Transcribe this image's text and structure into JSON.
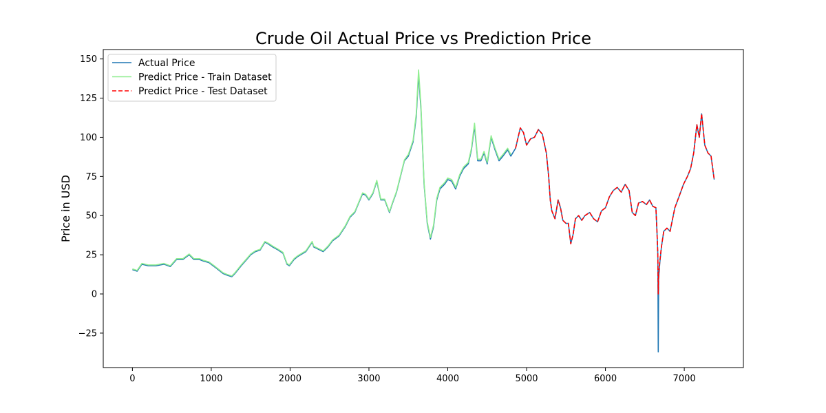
{
  "chart_data": {
    "type": "line",
    "title": "Crude Oil Actual Price vs Prediction Price",
    "xlabel": "",
    "ylabel": "Price in USD",
    "xlim": [
      -370,
      7750
    ],
    "ylim": [
      -47,
      156
    ],
    "xticks": [
      0,
      1000,
      2000,
      3000,
      4000,
      5000,
      6000,
      7000
    ],
    "yticks": [
      -25,
      0,
      25,
      50,
      75,
      100,
      125,
      150
    ],
    "grid": false,
    "legend_position": "upper left",
    "series": [
      {
        "name": "Actual Price",
        "color": "#1f77b4",
        "style": "solid",
        "points": [
          [
            0,
            15.5
          ],
          [
            60,
            14.5
          ],
          [
            120,
            19
          ],
          [
            200,
            18
          ],
          [
            300,
            18
          ],
          [
            400,
            19
          ],
          [
            480,
            17.5
          ],
          [
            560,
            22
          ],
          [
            640,
            22
          ],
          [
            720,
            25
          ],
          [
            780,
            22
          ],
          [
            850,
            22
          ],
          [
            900,
            21
          ],
          [
            970,
            20
          ],
          [
            1050,
            17
          ],
          [
            1100,
            15
          ],
          [
            1150,
            13
          ],
          [
            1200,
            12
          ],
          [
            1260,
            11
          ],
          [
            1300,
            13
          ],
          [
            1380,
            18
          ],
          [
            1450,
            22
          ],
          [
            1500,
            25
          ],
          [
            1560,
            27
          ],
          [
            1620,
            28
          ],
          [
            1680,
            33
          ],
          [
            1720,
            32
          ],
          [
            1780,
            30
          ],
          [
            1850,
            28
          ],
          [
            1910,
            26
          ],
          [
            1960,
            19
          ],
          [
            1990,
            18
          ],
          [
            2050,
            22
          ],
          [
            2100,
            24
          ],
          [
            2200,
            27
          ],
          [
            2280,
            33
          ],
          [
            2300,
            30
          ],
          [
            2380,
            28
          ],
          [
            2420,
            27
          ],
          [
            2480,
            30
          ],
          [
            2540,
            34
          ],
          [
            2620,
            37
          ],
          [
            2700,
            43
          ],
          [
            2760,
            49
          ],
          [
            2820,
            52
          ],
          [
            2870,
            58
          ],
          [
            2920,
            64
          ],
          [
            2960,
            63
          ],
          [
            3000,
            60
          ],
          [
            3050,
            64
          ],
          [
            3100,
            72
          ],
          [
            3150,
            60
          ],
          [
            3200,
            60
          ],
          [
            3260,
            52
          ],
          [
            3300,
            58
          ],
          [
            3350,
            65
          ],
          [
            3400,
            75
          ],
          [
            3450,
            85
          ],
          [
            3500,
            88
          ],
          [
            3560,
            97
          ],
          [
            3600,
            113
          ],
          [
            3630,
            140
          ],
          [
            3660,
            118
          ],
          [
            3700,
            70
          ],
          [
            3740,
            45
          ],
          [
            3780,
            35
          ],
          [
            3820,
            43
          ],
          [
            3860,
            60
          ],
          [
            3900,
            67
          ],
          [
            3960,
            70
          ],
          [
            4000,
            73
          ],
          [
            4050,
            72
          ],
          [
            4100,
            67
          ],
          [
            4150,
            75
          ],
          [
            4200,
            80
          ],
          [
            4260,
            83
          ],
          [
            4300,
            92
          ],
          [
            4340,
            107
          ],
          [
            4380,
            85
          ],
          [
            4420,
            85
          ],
          [
            4460,
            90
          ],
          [
            4500,
            83
          ],
          [
            4550,
            100
          ],
          [
            4600,
            92
          ],
          [
            4650,
            85
          ],
          [
            4700,
            88
          ],
          [
            4760,
            92
          ],
          [
            4800,
            88
          ],
          [
            4860,
            93
          ],
          [
            4920,
            106
          ],
          [
            4960,
            103
          ],
          [
            5000,
            95
          ],
          [
            5050,
            99
          ],
          [
            5100,
            100
          ],
          [
            5150,
            105
          ],
          [
            5200,
            102
          ],
          [
            5250,
            90
          ],
          [
            5280,
            75
          ],
          [
            5300,
            60
          ],
          [
            5320,
            53
          ],
          [
            5360,
            48
          ],
          [
            5400,
            60
          ],
          [
            5430,
            55
          ],
          [
            5460,
            47
          ],
          [
            5500,
            45
          ],
          [
            5530,
            45
          ],
          [
            5560,
            32
          ],
          [
            5590,
            38
          ],
          [
            5620,
            48
          ],
          [
            5660,
            50
          ],
          [
            5700,
            47
          ],
          [
            5740,
            50
          ],
          [
            5800,
            52
          ],
          [
            5850,
            48
          ],
          [
            5900,
            46
          ],
          [
            5950,
            53
          ],
          [
            6000,
            55
          ],
          [
            6050,
            62
          ],
          [
            6100,
            66
          ],
          [
            6150,
            68
          ],
          [
            6200,
            65
          ],
          [
            6250,
            70
          ],
          [
            6300,
            66
          ],
          [
            6340,
            52
          ],
          [
            6380,
            50
          ],
          [
            6420,
            58
          ],
          [
            6470,
            59
          ],
          [
            6520,
            57
          ],
          [
            6560,
            60
          ],
          [
            6600,
            56
          ],
          [
            6640,
            55
          ],
          [
            6655,
            38
          ],
          [
            6665,
            25
          ],
          [
            6670,
            -37
          ],
          [
            6675,
            10
          ],
          [
            6690,
            20
          ],
          [
            6710,
            30
          ],
          [
            6740,
            40
          ],
          [
            6780,
            42
          ],
          [
            6820,
            40
          ],
          [
            6880,
            55
          ],
          [
            6940,
            63
          ],
          [
            6990,
            70
          ],
          [
            7040,
            75
          ],
          [
            7080,
            80
          ],
          [
            7120,
            90
          ],
          [
            7160,
            108
          ],
          [
            7190,
            100
          ],
          [
            7220,
            115
          ],
          [
            7260,
            95
          ],
          [
            7300,
            90
          ],
          [
            7340,
            88
          ],
          [
            7380,
            73
          ]
        ]
      },
      {
        "name": "Predict Price - Train Dataset",
        "color": "#90ee90",
        "style": "solid",
        "points": [
          [
            0,
            16
          ],
          [
            60,
            15
          ],
          [
            120,
            19.5
          ],
          [
            200,
            18.5
          ],
          [
            300,
            18.5
          ],
          [
            400,
            19.5
          ],
          [
            480,
            18
          ],
          [
            560,
            22.5
          ],
          [
            640,
            22.5
          ],
          [
            720,
            25.5
          ],
          [
            780,
            22.5
          ],
          [
            850,
            22.5
          ],
          [
            900,
            21.5
          ],
          [
            970,
            20.5
          ],
          [
            1050,
            17.5
          ],
          [
            1100,
            15.5
          ],
          [
            1150,
            13.5
          ],
          [
            1200,
            12.5
          ],
          [
            1260,
            11.5
          ],
          [
            1300,
            13.5
          ],
          [
            1380,
            18.5
          ],
          [
            1450,
            22.5
          ],
          [
            1500,
            25.5
          ],
          [
            1560,
            27.5
          ],
          [
            1620,
            28.5
          ],
          [
            1680,
            33.5
          ],
          [
            1720,
            32.5
          ],
          [
            1780,
            30.5
          ],
          [
            1850,
            28.5
          ],
          [
            1910,
            26.5
          ],
          [
            1960,
            19.5
          ],
          [
            1990,
            18.5
          ],
          [
            2050,
            22.5
          ],
          [
            2100,
            24.5
          ],
          [
            2200,
            27.5
          ],
          [
            2280,
            33.5
          ],
          [
            2300,
            30.5
          ],
          [
            2380,
            28.5
          ],
          [
            2420,
            27.5
          ],
          [
            2480,
            30.5
          ],
          [
            2540,
            34.5
          ],
          [
            2620,
            37.5
          ],
          [
            2700,
            43.5
          ],
          [
            2760,
            49.5
          ],
          [
            2820,
            52.5
          ],
          [
            2870,
            58.5
          ],
          [
            2920,
            64.5
          ],
          [
            2960,
            63.5
          ],
          [
            3000,
            60.5
          ],
          [
            3050,
            64.5
          ],
          [
            3100,
            72.5
          ],
          [
            3150,
            60.5
          ],
          [
            3200,
            60.5
          ],
          [
            3260,
            52.5
          ],
          [
            3300,
            58.5
          ],
          [
            3350,
            65.5
          ],
          [
            3400,
            75.5
          ],
          [
            3450,
            85.5
          ],
          [
            3500,
            89
          ],
          [
            3560,
            98
          ],
          [
            3600,
            115
          ],
          [
            3630,
            143
          ],
          [
            3660,
            120
          ],
          [
            3700,
            71
          ],
          [
            3740,
            46
          ],
          [
            3780,
            36
          ],
          [
            3820,
            44
          ],
          [
            3860,
            61
          ],
          [
            3900,
            68
          ],
          [
            3960,
            71
          ],
          [
            4000,
            74
          ],
          [
            4050,
            73
          ],
          [
            4100,
            68
          ],
          [
            4150,
            76
          ],
          [
            4200,
            81
          ],
          [
            4260,
            84
          ],
          [
            4300,
            93
          ],
          [
            4340,
            109
          ],
          [
            4380,
            86
          ],
          [
            4420,
            86
          ],
          [
            4460,
            91
          ],
          [
            4500,
            84
          ],
          [
            4550,
            101
          ],
          [
            4600,
            93
          ],
          [
            4650,
            86
          ],
          [
            4700,
            89
          ],
          [
            4760,
            93
          ],
          [
            4800,
            89
          ]
        ]
      },
      {
        "name": "Predict Price - Test Dataset",
        "color": "#ff0000",
        "style": "dashed",
        "points": [
          [
            4860,
            93
          ],
          [
            4920,
            106
          ],
          [
            4960,
            103
          ],
          [
            5000,
            95
          ],
          [
            5050,
            99
          ],
          [
            5100,
            100
          ],
          [
            5150,
            105
          ],
          [
            5200,
            102
          ],
          [
            5250,
            90
          ],
          [
            5280,
            75
          ],
          [
            5300,
            60
          ],
          [
            5320,
            53
          ],
          [
            5360,
            48
          ],
          [
            5400,
            60
          ],
          [
            5430,
            55
          ],
          [
            5460,
            47
          ],
          [
            5500,
            45
          ],
          [
            5530,
            45
          ],
          [
            5560,
            32
          ],
          [
            5590,
            38
          ],
          [
            5620,
            48
          ],
          [
            5660,
            50
          ],
          [
            5700,
            47
          ],
          [
            5740,
            50
          ],
          [
            5800,
            52
          ],
          [
            5850,
            48
          ],
          [
            5900,
            46
          ],
          [
            5950,
            53
          ],
          [
            6000,
            55
          ],
          [
            6050,
            62
          ],
          [
            6100,
            66
          ],
          [
            6150,
            68
          ],
          [
            6200,
            65
          ],
          [
            6250,
            70
          ],
          [
            6300,
            66
          ],
          [
            6340,
            52
          ],
          [
            6380,
            50
          ],
          [
            6420,
            58
          ],
          [
            6470,
            59
          ],
          [
            6520,
            57
          ],
          [
            6560,
            60
          ],
          [
            6600,
            56
          ],
          [
            6640,
            55
          ],
          [
            6655,
            38
          ],
          [
            6665,
            25
          ],
          [
            6670,
            0
          ],
          [
            6675,
            12
          ],
          [
            6690,
            21
          ],
          [
            6710,
            30
          ],
          [
            6740,
            40
          ],
          [
            6780,
            42
          ],
          [
            6820,
            40
          ],
          [
            6880,
            55
          ],
          [
            6940,
            63
          ],
          [
            6990,
            70
          ],
          [
            7040,
            75
          ],
          [
            7080,
            80
          ],
          [
            7120,
            90
          ],
          [
            7160,
            108
          ],
          [
            7190,
            100
          ],
          [
            7220,
            115
          ],
          [
            7260,
            95
          ],
          [
            7300,
            90
          ],
          [
            7340,
            88
          ],
          [
            7380,
            73
          ]
        ]
      }
    ]
  }
}
